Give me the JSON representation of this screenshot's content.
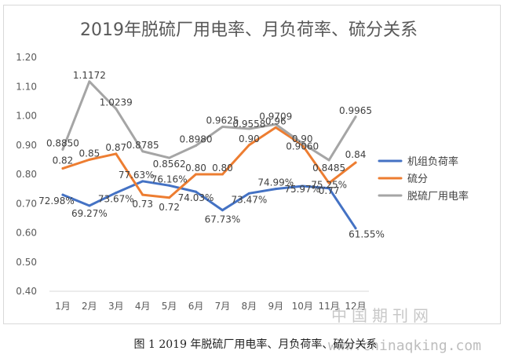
{
  "caption": "图 1 2019 年脱硫厂用电率、月负荷率、硫分关系",
  "watermark": {
    "line1": "中国期刊网",
    "line2": "www.chinaqking.com"
  },
  "chart_data": {
    "type": "line",
    "title": "2019年脱硫厂用电率、月负荷率、硫分关系",
    "categories": [
      "1月",
      "2月",
      "3月",
      "4月",
      "5月",
      "6月",
      "7月",
      "8月",
      "9月",
      "10月",
      "11月",
      "12月"
    ],
    "ylim": [
      0.4,
      1.2
    ],
    "yticks": [
      "0.40",
      "0.50",
      "0.60",
      "0.70",
      "0.80",
      "0.90",
      "1.00",
      "1.10",
      "1.20"
    ],
    "grid": false,
    "legend_position": "right",
    "series": [
      {
        "name": "机组负荷率",
        "color": "#4472C4",
        "values": [
          0.7298,
          0.6927,
          0.7367,
          0.7763,
          0.7616,
          0.7403,
          0.6773,
          0.7347,
          0.7499,
          0.7597,
          0.7525,
          0.6155
        ],
        "labels": [
          "72.98%",
          "69.27%",
          "73.67%",
          "77.63%",
          "76.16%",
          "74.03%",
          "67.73%",
          "73.47%",
          "74.99%",
          "75.97%",
          "75.25%",
          "61.55%"
        ]
      },
      {
        "name": "硫分",
        "color": "#ED7D31",
        "values": [
          0.82,
          0.85,
          0.87,
          0.73,
          0.72,
          0.8,
          0.8,
          0.9,
          0.96,
          0.9,
          0.77,
          0.84
        ],
        "labels": [
          "0.82",
          "0.85",
          "0.87",
          "0.73",
          "0.72",
          "0.80",
          "0.80",
          "0.90",
          "0.96",
          "0.90",
          "0.77",
          "0.84"
        ]
      },
      {
        "name": "脱硫厂用电率",
        "color": "#A5A5A5",
        "values": [
          0.885,
          1.1172,
          1.0239,
          0.8785,
          0.8562,
          0.898,
          0.9625,
          0.9558,
          0.9709,
          0.906,
          0.8485,
          0.9965
        ],
        "labels": [
          "0.8850",
          "1.1172",
          "1.0239",
          "0.8785",
          "0.8562",
          "0.8980",
          "0.9625",
          "0.9558",
          "0.9709",
          "0.9060",
          "0.8485",
          "0.9965"
        ]
      }
    ]
  }
}
